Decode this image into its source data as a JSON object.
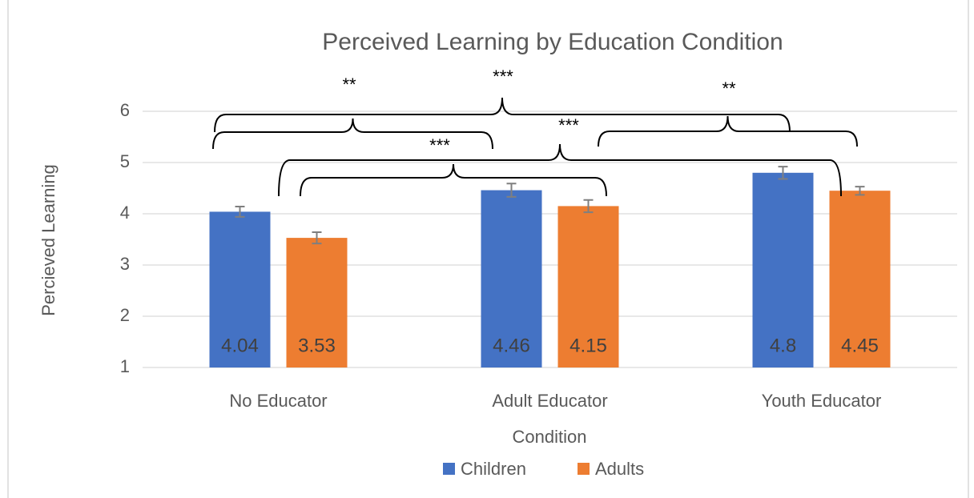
{
  "chart_data": {
    "type": "bar",
    "title": "Perceived Learning by Education Condition",
    "x_label": "Condition",
    "y_label": "Percieved Learning",
    "categories": [
      "No Educator",
      "Adult Educator",
      "Youth Educator"
    ],
    "series": [
      {
        "name": "Children",
        "color": "#4472c4",
        "values": [
          4.04,
          4.46,
          4.8
        ],
        "errors": [
          0.1,
          0.13,
          0.12
        ]
      },
      {
        "name": "Adults",
        "color": "#ed7d31",
        "values": [
          3.53,
          4.15,
          4.45
        ],
        "errors": [
          0.11,
          0.12,
          0.08
        ]
      }
    ],
    "ylim": [
      1,
      6
    ],
    "yticks": [
      1,
      2,
      3,
      4,
      5,
      6
    ],
    "grid": true,
    "legend": "bottom",
    "annotations": [
      "**",
      "***",
      "**",
      "***",
      "***"
    ]
  }
}
